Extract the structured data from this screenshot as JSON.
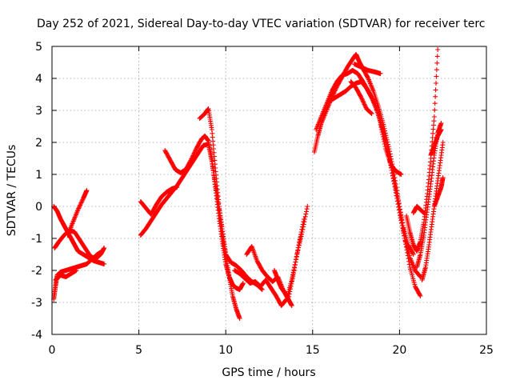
{
  "chart_data": {
    "type": "scatter",
    "title": "Day 252 of 2021, Sidereal Day-to-day VTEC variation (SDTVAR) for receiver terc",
    "xlabel": "GPS time / hours",
    "ylabel": "SDTVAR / TECUs",
    "xlim": [
      0,
      25
    ],
    "ylim": [
      -4,
      5
    ],
    "xticks": [
      "0",
      "5",
      "10",
      "15",
      "20",
      "25"
    ],
    "yticks": [
      "-4",
      "-3",
      "-2",
      "-1",
      "0",
      "1",
      "2",
      "3",
      "4",
      "5"
    ],
    "grid": true,
    "marker": "+",
    "color": "#ff0000",
    "series": [
      {
        "segments": [
          {
            "x": [
              0.1,
              0.3,
              0.5,
              0.7,
              0.9,
              1.1,
              1.3,
              1.5,
              1.8,
              2.1,
              2.4,
              2.7,
              3.0
            ],
            "y": [
              0.0,
              -0.15,
              -0.4,
              -0.6,
              -0.8,
              -1.0,
              -1.2,
              -1.4,
              -1.5,
              -1.6,
              -1.7,
              -1.75,
              -1.8
            ]
          },
          {
            "x": [
              0.15,
              0.4,
              0.7,
              1.0,
              1.3,
              1.6,
              1.9,
              2.2,
              2.5,
              2.8,
              3.0
            ],
            "y": [
              -1.3,
              -1.1,
              -0.9,
              -0.75,
              -0.8,
              -1.05,
              -1.3,
              -1.55,
              -1.65,
              -1.5,
              -1.3
            ]
          },
          {
            "x": [
              0.9,
              1.2,
              1.5,
              1.8,
              2.0
            ],
            "y": [
              -0.9,
              -0.5,
              -0.1,
              0.25,
              0.5
            ]
          },
          {
            "x": [
              0.1,
              0.2,
              0.3,
              0.5,
              0.8,
              1.1,
              1.4,
              1.7,
              2.0,
              2.3,
              2.6,
              2.9
            ],
            "y": [
              -2.9,
              -2.5,
              -2.15,
              -2.05,
              -2.0,
              -1.95,
              -1.9,
              -1.85,
              -1.8,
              -1.65,
              -1.5,
              -1.4
            ]
          },
          {
            "x": [
              0.2,
              0.5,
              0.8,
              1.1,
              1.4
            ],
            "y": [
              -2.3,
              -2.15,
              -2.2,
              -2.1,
              -2.0
            ]
          },
          {
            "x": [
              5.1,
              5.4,
              5.7,
              6.0,
              6.3,
              6.6,
              6.9,
              7.2,
              7.5,
              7.8,
              8.1,
              8.4,
              8.7,
              9.0,
              9.2,
              9.4,
              9.6,
              9.8,
              10.0,
              10.2,
              10.4,
              10.6,
              10.8
            ],
            "y": [
              -0.9,
              -0.7,
              -0.45,
              -0.2,
              0.05,
              0.25,
              0.45,
              0.65,
              0.9,
              1.15,
              1.4,
              1.65,
              1.9,
              1.95,
              1.4,
              0.7,
              0.0,
              -0.7,
              -1.5,
              -2.2,
              -2.8,
              -3.2,
              -3.5
            ]
          },
          {
            "x": [
              5.1,
              5.4,
              5.7,
              6.0,
              6.3,
              6.6,
              6.9,
              7.2
            ],
            "y": [
              0.15,
              -0.05,
              -0.25,
              0.05,
              0.3,
              0.45,
              0.55,
              0.6
            ]
          },
          {
            "x": [
              6.5,
              6.8,
              7.1,
              7.4,
              7.7,
              8.0,
              8.3,
              8.6,
              8.8,
              9.0,
              9.2,
              9.4,
              9.6,
              9.8,
              10.0,
              10.2,
              10.4,
              10.6,
              10.8,
              11.0
            ],
            "y": [
              1.75,
              1.45,
              1.15,
              1.05,
              1.15,
              1.45,
              1.8,
              2.1,
              2.2,
              2.05,
              1.5,
              0.6,
              -0.3,
              -1.1,
              -1.8,
              -2.2,
              -2.45,
              -2.55,
              -2.6,
              -2.4
            ]
          },
          {
            "x": [
              8.5,
              8.8,
              9.0,
              9.2,
              9.4,
              9.6,
              9.8,
              10.0,
              10.3,
              10.6,
              10.9,
              11.2,
              11.5,
              11.8,
              12.1
            ],
            "y": [
              2.75,
              2.9,
              3.05,
              2.4,
              1.2,
              0.1,
              -0.9,
              -1.5,
              -1.75,
              -1.85,
              -2.0,
              -2.2,
              -2.35,
              -2.45,
              -2.6
            ]
          },
          {
            "x": [
              10.5,
              10.8,
              11.1,
              11.4,
              11.7,
              12.0,
              12.3,
              12.6,
              12.9,
              13.2,
              13.5,
              13.8,
              14.1,
              14.4,
              14.7
            ],
            "y": [
              -2.0,
              -2.1,
              -2.25,
              -2.4,
              -2.35,
              -2.5,
              -2.3,
              -2.55,
              -2.8,
              -3.1,
              -2.9,
              -2.3,
              -1.5,
              -0.8,
              0.0
            ]
          },
          {
            "x": [
              11.2,
              11.5,
              11.8,
              12.1,
              12.4,
              12.7,
              13.0,
              13.3,
              13.6,
              13.9,
              14.2,
              14.5
            ],
            "y": [
              -1.5,
              -1.25,
              -1.7,
              -2.0,
              -2.2,
              -2.35,
              -2.2,
              -2.6,
              -2.9,
              -2.1,
              -1.2,
              -0.4
            ]
          },
          {
            "x": [
              12.8,
              13.0,
              13.2,
              13.4,
              13.6,
              13.8
            ],
            "y": [
              -2.0,
              -2.3,
              -2.55,
              -2.7,
              -2.9,
              -3.1
            ]
          },
          {
            "x": [
              15.1,
              15.3,
              15.5,
              15.8,
              16.1,
              16.4,
              16.7,
              17.0,
              17.3,
              17.5,
              17.7,
              17.9,
              18.2,
              18.5,
              18.8,
              19.1,
              19.4,
              19.7,
              20.0,
              20.3,
              20.6,
              20.9,
              21.2
            ],
            "y": [
              1.7,
              2.2,
              2.6,
              3.0,
              3.4,
              3.75,
              4.05,
              4.35,
              4.6,
              4.75,
              4.5,
              4.3,
              4.0,
              3.6,
              3.1,
              2.5,
              1.8,
              1.0,
              0.0,
              -1.0,
              -1.9,
              -2.5,
              -2.8
            ]
          },
          {
            "x": [
              15.2,
              15.5,
              15.8,
              16.1,
              16.4,
              16.7,
              17.0,
              17.3,
              17.6,
              17.9,
              18.2,
              18.5,
              18.8,
              19.1,
              19.4,
              19.7,
              20.0,
              20.3,
              20.6,
              20.9,
              21.2
            ],
            "y": [
              2.4,
              2.8,
              3.2,
              3.6,
              3.9,
              4.1,
              4.15,
              4.25,
              4.15,
              3.9,
              3.6,
              3.3,
              2.85,
              2.3,
              1.55,
              0.7,
              -0.2,
              -1.0,
              -1.6,
              -2.0,
              -2.2
            ]
          },
          {
            "x": [
              16.0,
              16.3,
              16.6,
              16.9,
              17.2,
              17.5,
              17.8,
              18.1,
              18.4,
              18.7,
              19.0,
              19.3,
              19.6,
              19.9,
              20.2,
              20.5,
              20.8
            ],
            "y": [
              3.3,
              3.4,
              3.5,
              3.6,
              3.75,
              3.85,
              3.9,
              3.7,
              3.4,
              3.0,
              2.45,
              1.8,
              1.05,
              0.25,
              -0.6,
              -1.2,
              -1.5
            ]
          },
          {
            "x": [
              17.4,
              17.8,
              18.2,
              18.6,
              18.9
            ],
            "y": [
              4.45,
              4.35,
              4.25,
              4.2,
              4.15
            ]
          },
          {
            "x": [
              17.2,
              17.5,
              17.8,
              18.1,
              18.4
            ],
            "y": [
              3.9,
              3.7,
              3.4,
              3.05,
              2.9
            ]
          },
          {
            "x": [
              18.9,
              19.2,
              19.5,
              19.8,
              20.1
            ],
            "y": [
              2.55,
              1.8,
              1.3,
              1.1,
              1.0
            ]
          },
          {
            "x": [
              20.4,
              20.6,
              20.8,
              21.0,
              21.2,
              21.4,
              21.6,
              21.8,
              22.0,
              22.2
            ],
            "y": [
              -0.3,
              -0.8,
              -1.2,
              -1.4,
              -1.1,
              -0.5,
              0.4,
              1.5,
              2.8,
              4.9
            ]
          },
          {
            "x": [
              21.0,
              21.2,
              21.4,
              21.6,
              21.8,
              22.0,
              22.2,
              22.4
            ],
            "y": [
              -1.9,
              -1.5,
              -0.9,
              -0.1,
              0.7,
              1.6,
              2.3,
              2.6
            ]
          },
          {
            "x": [
              21.3,
              21.5,
              21.7,
              21.9,
              22.1,
              22.3,
              22.5
            ],
            "y": [
              -2.3,
              -1.9,
              -1.2,
              -0.4,
              0.4,
              1.2,
              2.0
            ]
          },
          {
            "x": [
              20.8,
              21.0,
              21.2,
              21.4
            ],
            "y": [
              -0.2,
              0.0,
              -0.1,
              -0.2
            ]
          },
          {
            "x": [
              21.8,
              22.0,
              22.2,
              22.4
            ],
            "y": [
              1.6,
              1.9,
              2.2,
              2.4
            ]
          },
          {
            "x": [
              22.0,
              22.2,
              22.4,
              22.5
            ],
            "y": [
              0.0,
              0.3,
              0.6,
              0.9
            ]
          }
        ]
      }
    ]
  }
}
